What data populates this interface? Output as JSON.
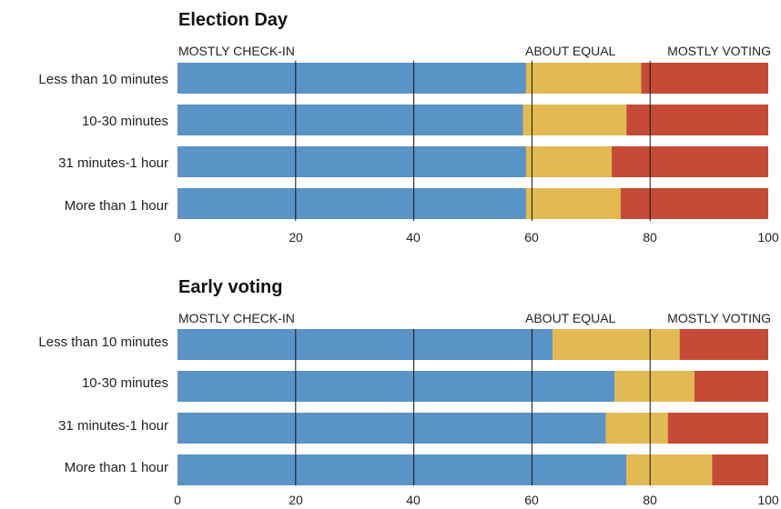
{
  "chart_data": [
    {
      "type": "bar",
      "stacked": true,
      "orientation": "horizontal",
      "title": "Election Day",
      "legend_labels": [
        "MOSTLY CHECK-IN",
        "ABOUT EQUAL",
        "MOSTLY VOTING"
      ],
      "categories": [
        "Less than 10 minutes",
        "10-30 minutes",
        "31 minutes-1 hour",
        "More than 1 hour"
      ],
      "series": [
        {
          "name": "MOSTLY CHECK-IN",
          "color": "#5a93c6",
          "values": [
            59,
            58.5,
            59,
            59
          ]
        },
        {
          "name": "ABOUT EQUAL",
          "color": "#e3b953",
          "values": [
            19.5,
            17.5,
            14.5,
            16
          ]
        },
        {
          "name": "MOSTLY VOTING",
          "color": "#c64b37",
          "values": [
            21.5,
            24,
            26.5,
            25
          ]
        }
      ],
      "xlim": [
        0,
        100
      ],
      "xticks": [
        "0",
        "20",
        "40",
        "60",
        "80",
        "100"
      ],
      "gridlines_at": [
        20,
        40,
        60,
        80
      ]
    },
    {
      "type": "bar",
      "stacked": true,
      "orientation": "horizontal",
      "title": "Early voting",
      "legend_labels": [
        "MOSTLY CHECK-IN",
        "ABOUT EQUAL",
        "MOSTLY VOTING"
      ],
      "categories": [
        "Less than 10 minutes",
        "10-30 minutes",
        "31 minutes-1 hour",
        "More than 1 hour"
      ],
      "series": [
        {
          "name": "MOSTLY CHECK-IN",
          "color": "#5a93c6",
          "values": [
            63.5,
            74,
            72.5,
            76
          ]
        },
        {
          "name": "ABOUT EQUAL",
          "color": "#e3b953",
          "values": [
            21.5,
            13.5,
            10.5,
            14.5
          ]
        },
        {
          "name": "MOSTLY VOTING",
          "color": "#c64b37",
          "values": [
            15,
            12.5,
            17,
            9.5
          ]
        }
      ],
      "xlim": [
        0,
        100
      ],
      "xticks": [
        "0",
        "20",
        "40",
        "60",
        "80",
        "100"
      ],
      "gridlines_at": [
        20,
        40,
        60,
        80
      ]
    }
  ]
}
